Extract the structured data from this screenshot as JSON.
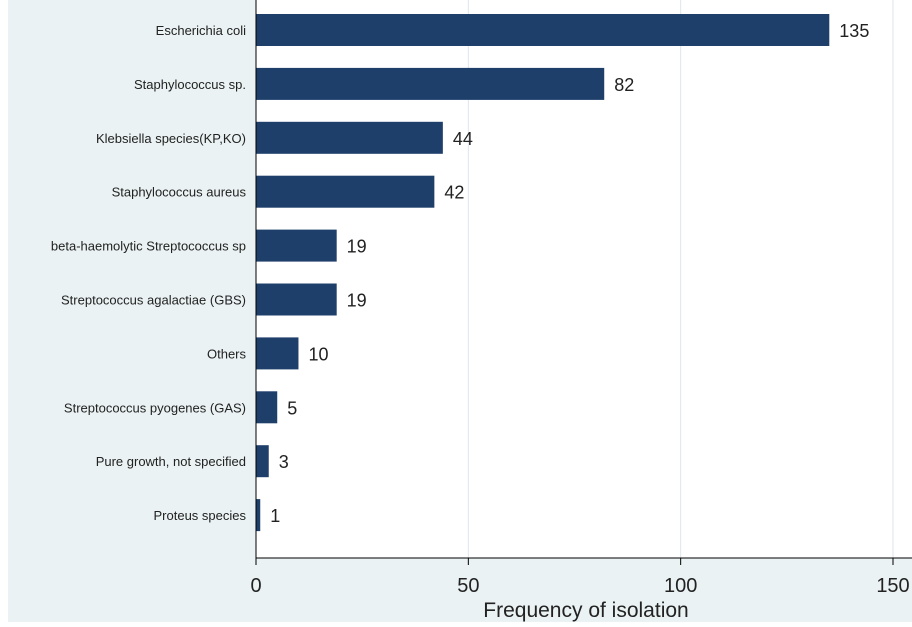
{
  "chart_data": {
    "type": "bar",
    "orientation": "horizontal",
    "categories": [
      "Escherichia coli",
      "Staphylococcus sp.",
      "Klebsiella species(KP,KO)",
      "Staphylococcus aureus",
      "beta-haemolytic Streptococcus sp",
      "Streptococcus agalactiae (GBS)",
      "Others",
      "Streptococcus pyogenes (GAS)",
      "Pure growth, not specified",
      "Proteus species"
    ],
    "values": [
      135,
      82,
      44,
      42,
      19,
      19,
      10,
      5,
      3,
      1
    ],
    "xlabel": "Frequency of isolation",
    "ylabel": "",
    "xlim": [
      0,
      150
    ],
    "xticks": [
      0,
      50,
      100,
      150
    ],
    "grid": true,
    "bar_color": "#1f3f6b",
    "plot_background": "#eaf2f3",
    "figure_background": "#ffffff",
    "gridline_color": "#dce6ec"
  }
}
